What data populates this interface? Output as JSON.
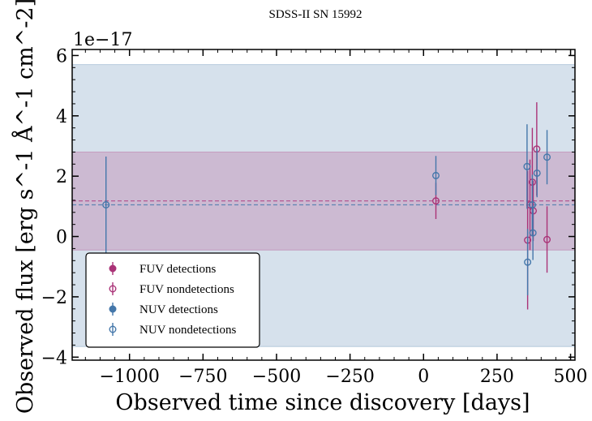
{
  "chart_data": {
    "type": "scatter",
    "title": "SDSS-II SN 15992",
    "xlabel": "Observed time since discovery [days]",
    "ylabel": "Observed flux [erg s^-1 Å^-1 cm^-2]",
    "y_offset_label": "1e−17",
    "xlim": [
      -1195,
      515
    ],
    "ylim": [
      -4.1,
      6.2
    ],
    "xticks": [
      -1000,
      -750,
      -500,
      -250,
      0,
      250,
      500
    ],
    "xtick_labels": [
      "−1000",
      "−750",
      "−500",
      "−250",
      "0",
      "250",
      "500"
    ],
    "yticks": [
      -4,
      -2,
      0,
      2,
      4,
      6
    ],
    "ytick_labels": [
      "−4",
      "−2",
      "0",
      "2",
      "4",
      "6"
    ],
    "bands": [
      {
        "band": "NUV",
        "color": "#4477aa",
        "y_low": -3.65,
        "y_high": 5.7,
        "mean": 1.05
      },
      {
        "band": "FUV",
        "color": "#aa3377",
        "y_low": -0.45,
        "y_high": 2.8,
        "mean": 1.18
      }
    ],
    "series": [
      {
        "name": "FUV detections",
        "color": "#aa3377",
        "filled": true,
        "points": []
      },
      {
        "name": "FUV nondetections",
        "color": "#aa3377",
        "filled": false,
        "points": [
          {
            "x": 42,
            "y": 1.18,
            "err": 0.6
          },
          {
            "x": 354,
            "y": -0.12,
            "err": 2.3
          },
          {
            "x": 362,
            "y": 1.05,
            "err": 1.5
          },
          {
            "x": 370,
            "y": 1.8,
            "err": 1.8
          },
          {
            "x": 373,
            "y": 0.85,
            "err": 1.0
          },
          {
            "x": 385,
            "y": 2.9,
            "err": 1.55
          },
          {
            "x": 420,
            "y": -0.1,
            "err": 1.1
          }
        ]
      },
      {
        "name": "NUV detections",
        "color": "#4477aa",
        "filled": true,
        "points": []
      },
      {
        "name": "NUV nondetections",
        "color": "#4477aa",
        "filled": false,
        "points": [
          {
            "x": -1080,
            "y": 1.05,
            "err": 1.6
          },
          {
            "x": 42,
            "y": 2.02,
            "err": 0.65
          },
          {
            "x": 352,
            "y": 2.32,
            "err": 1.4
          },
          {
            "x": 354,
            "y": -0.85,
            "err": 1.1
          },
          {
            "x": 370,
            "y": 1.05,
            "err": 1.0
          },
          {
            "x": 372,
            "y": 0.12,
            "err": 0.9
          },
          {
            "x": 386,
            "y": 2.1,
            "err": 0.8
          },
          {
            "x": 420,
            "y": 2.63,
            "err": 0.9
          }
        ]
      }
    ],
    "legend_position": "lower-left",
    "grid": false
  }
}
